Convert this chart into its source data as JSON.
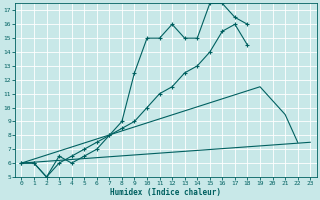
{
  "xlabel": "Humidex (Indice chaleur)",
  "bg_color": "#c8e8e8",
  "grid_color": "#ffffff",
  "line_color": "#006060",
  "xlim": [
    -0.5,
    23.5
  ],
  "ylim": [
    5,
    17.5
  ],
  "xticks": [
    0,
    1,
    2,
    3,
    4,
    5,
    6,
    7,
    8,
    9,
    10,
    11,
    12,
    13,
    14,
    15,
    16,
    17,
    18,
    19,
    20,
    21,
    22,
    23
  ],
  "yticks": [
    5,
    6,
    7,
    8,
    9,
    10,
    11,
    12,
    13,
    14,
    15,
    16,
    17
  ],
  "s1x": [
    0,
    1,
    2,
    3,
    4,
    5,
    6,
    7,
    8,
    9,
    10,
    11,
    12,
    13,
    14,
    15,
    16,
    17,
    18
  ],
  "s1y": [
    6,
    6,
    5,
    6.5,
    6,
    6.5,
    7,
    8,
    8.5,
    9,
    10,
    11,
    11.5,
    12.5,
    13,
    14,
    15.5,
    16,
    14.5
  ],
  "s2x": [
    0,
    1,
    2,
    3,
    4,
    5,
    6,
    7,
    8,
    9,
    10,
    11,
    12,
    13,
    14,
    15,
    16,
    17,
    18
  ],
  "s2y": [
    6,
    6,
    5,
    6,
    6.5,
    7,
    7.5,
    8,
    9,
    12.5,
    15,
    15,
    16,
    15,
    15,
    17.5,
    17.5,
    16.5,
    16
  ],
  "s3x": [
    0,
    23
  ],
  "s3y": [
    6,
    7.5
  ],
  "s4x": [
    0,
    19,
    21,
    22
  ],
  "s4y": [
    6,
    11.5,
    9.5,
    7.5
  ]
}
